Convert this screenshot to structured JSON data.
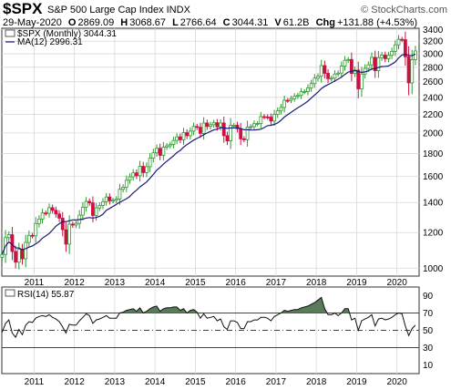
{
  "header": {
    "symbol": "$SPX",
    "name": "S&P 500 Large Cap Index",
    "exchange": "INDX",
    "watermark": "© StockCharts.com",
    "date": "29-May-2020",
    "open_label": "O",
    "open": "2869.09",
    "high_label": "H",
    "high": "3068.67",
    "low_label": "L",
    "low": "2766.64",
    "close_label": "C",
    "close": "3044.31",
    "volume_label": "V",
    "volume": "61.2B",
    "change_label": "Chg",
    "change": "+131.88 (+4.53%)"
  },
  "legend": {
    "price": "$SPX (Monthly) 3044.31",
    "ma": "MA(12) 2996.31",
    "rsi": "RSI(14) 55.87"
  },
  "colors": {
    "up": "#2e9a2e",
    "down": "#cc1144",
    "ma": "#1a1a7a",
    "rsi_fill": "#5a7a5a",
    "grid": "#d8d8d8",
    "frame": "#333333"
  },
  "chart_data": [
    {
      "type": "candlestick",
      "title": "$SPX S&P 500 Large Cap Index",
      "scale": "log",
      "ylim": [
        960,
        3420
      ],
      "y_ticks": [
        1000,
        1200,
        1400,
        1600,
        1800,
        2000,
        2200,
        2400,
        2600,
        2800,
        3000,
        3200,
        3400
      ],
      "x_ticks": [
        "2011",
        "2012",
        "2013",
        "2014",
        "2015",
        "2016",
        "2017",
        "2018",
        "2019",
        "2020"
      ],
      "x_tick_dates": [
        2011.0,
        2012.0,
        2013.0,
        2014.0,
        2015.0,
        2016.0,
        2017.0,
        2018.0,
        2019.0,
        2020.0
      ],
      "xlim": [
        2010.2,
        2020.55
      ],
      "grid": true,
      "series": [
        {
          "name": "$SPX (Monthly)",
          "start": "2010-03",
          "values": [
            1073,
            1169,
            1187,
            1089,
            1031,
            1101,
            1049,
            1141,
            1183,
            1180,
            1257,
            1286,
            1327,
            1325,
            1363,
            1345,
            1320,
            1292,
            1218,
            1131,
            1253,
            1247,
            1258,
            1312,
            1366,
            1408,
            1397,
            1310,
            1362,
            1379,
            1406,
            1440,
            1412,
            1416,
            1426,
            1498,
            1514,
            1569,
            1597,
            1630,
            1606,
            1685,
            1632,
            1682,
            1757,
            1806,
            1848,
            1783,
            1859,
            1872,
            1884,
            1924,
            1960,
            1931,
            2003,
            1972,
            2018,
            2067,
            2059,
            1995,
            2104,
            2068,
            2086,
            2107,
            2063,
            2104,
            1972,
            1920,
            2079,
            2080,
            2044,
            1940,
            1932,
            2060,
            2065,
            2097,
            2099,
            2174,
            2171,
            2168,
            2126,
            2199,
            2239,
            2279,
            2364,
            2363,
            2384,
            2412,
            2423,
            2470,
            2472,
            2519,
            2575,
            2648,
            2674,
            2824,
            2714,
            2641,
            2648,
            2705,
            2718,
            2816,
            2902,
            2914,
            2712,
            2760,
            2507,
            2704,
            2784,
            2834,
            2946,
            2752,
            2942,
            2980,
            2926,
            2977,
            3038,
            3141,
            3231,
            3226,
            2954,
            2585,
            2912,
            3044
          ]
        },
        {
          "name": "MA(12)",
          "values": []
        }
      ],
      "legend": [
        "$SPX (Monthly) 3044.31",
        "MA(12) 2996.31"
      ]
    },
    {
      "type": "line",
      "title": "RSI(14)",
      "ylim": [
        0,
        100
      ],
      "y_ticks": [
        10,
        30,
        50,
        70,
        90
      ],
      "reference_lines": [
        70,
        50,
        30
      ],
      "overbought": 70,
      "x_ticks": [
        "2011",
        "2012",
        "2013",
        "2014",
        "2015",
        "2016",
        "2017",
        "2018",
        "2019",
        "2020"
      ],
      "series": [
        {
          "name": "RSI(14)",
          "values": [
            48,
            58,
            62,
            47,
            42,
            51,
            45,
            56,
            60,
            59,
            64,
            66,
            67,
            66,
            68,
            65,
            63,
            60,
            54,
            47,
            57,
            56,
            56,
            61,
            65,
            69,
            67,
            58,
            62,
            63,
            65,
            67,
            64,
            64,
            64,
            70,
            71,
            73,
            74,
            75,
            72,
            76,
            70,
            72,
            75,
            77,
            78,
            72,
            75,
            76,
            76,
            77,
            77,
            73,
            75,
            70,
            73,
            74,
            71,
            64,
            69,
            64,
            65,
            66,
            61,
            63,
            54,
            51,
            61,
            61,
            59,
            52,
            52,
            60,
            60,
            62,
            62,
            65,
            65,
            64,
            61,
            66,
            68,
            70,
            73,
            72,
            73,
            74,
            74,
            76,
            77,
            78,
            80,
            82,
            85,
            88,
            75,
            68,
            68,
            70,
            67,
            70,
            75,
            75,
            62,
            64,
            50,
            61,
            63,
            65,
            68,
            55,
            63,
            64,
            62,
            63,
            65,
            68,
            70,
            69,
            55,
            44,
            52,
            55.87
          ]
        }
      ],
      "legend": [
        "RSI(14) 55.87"
      ]
    }
  ]
}
